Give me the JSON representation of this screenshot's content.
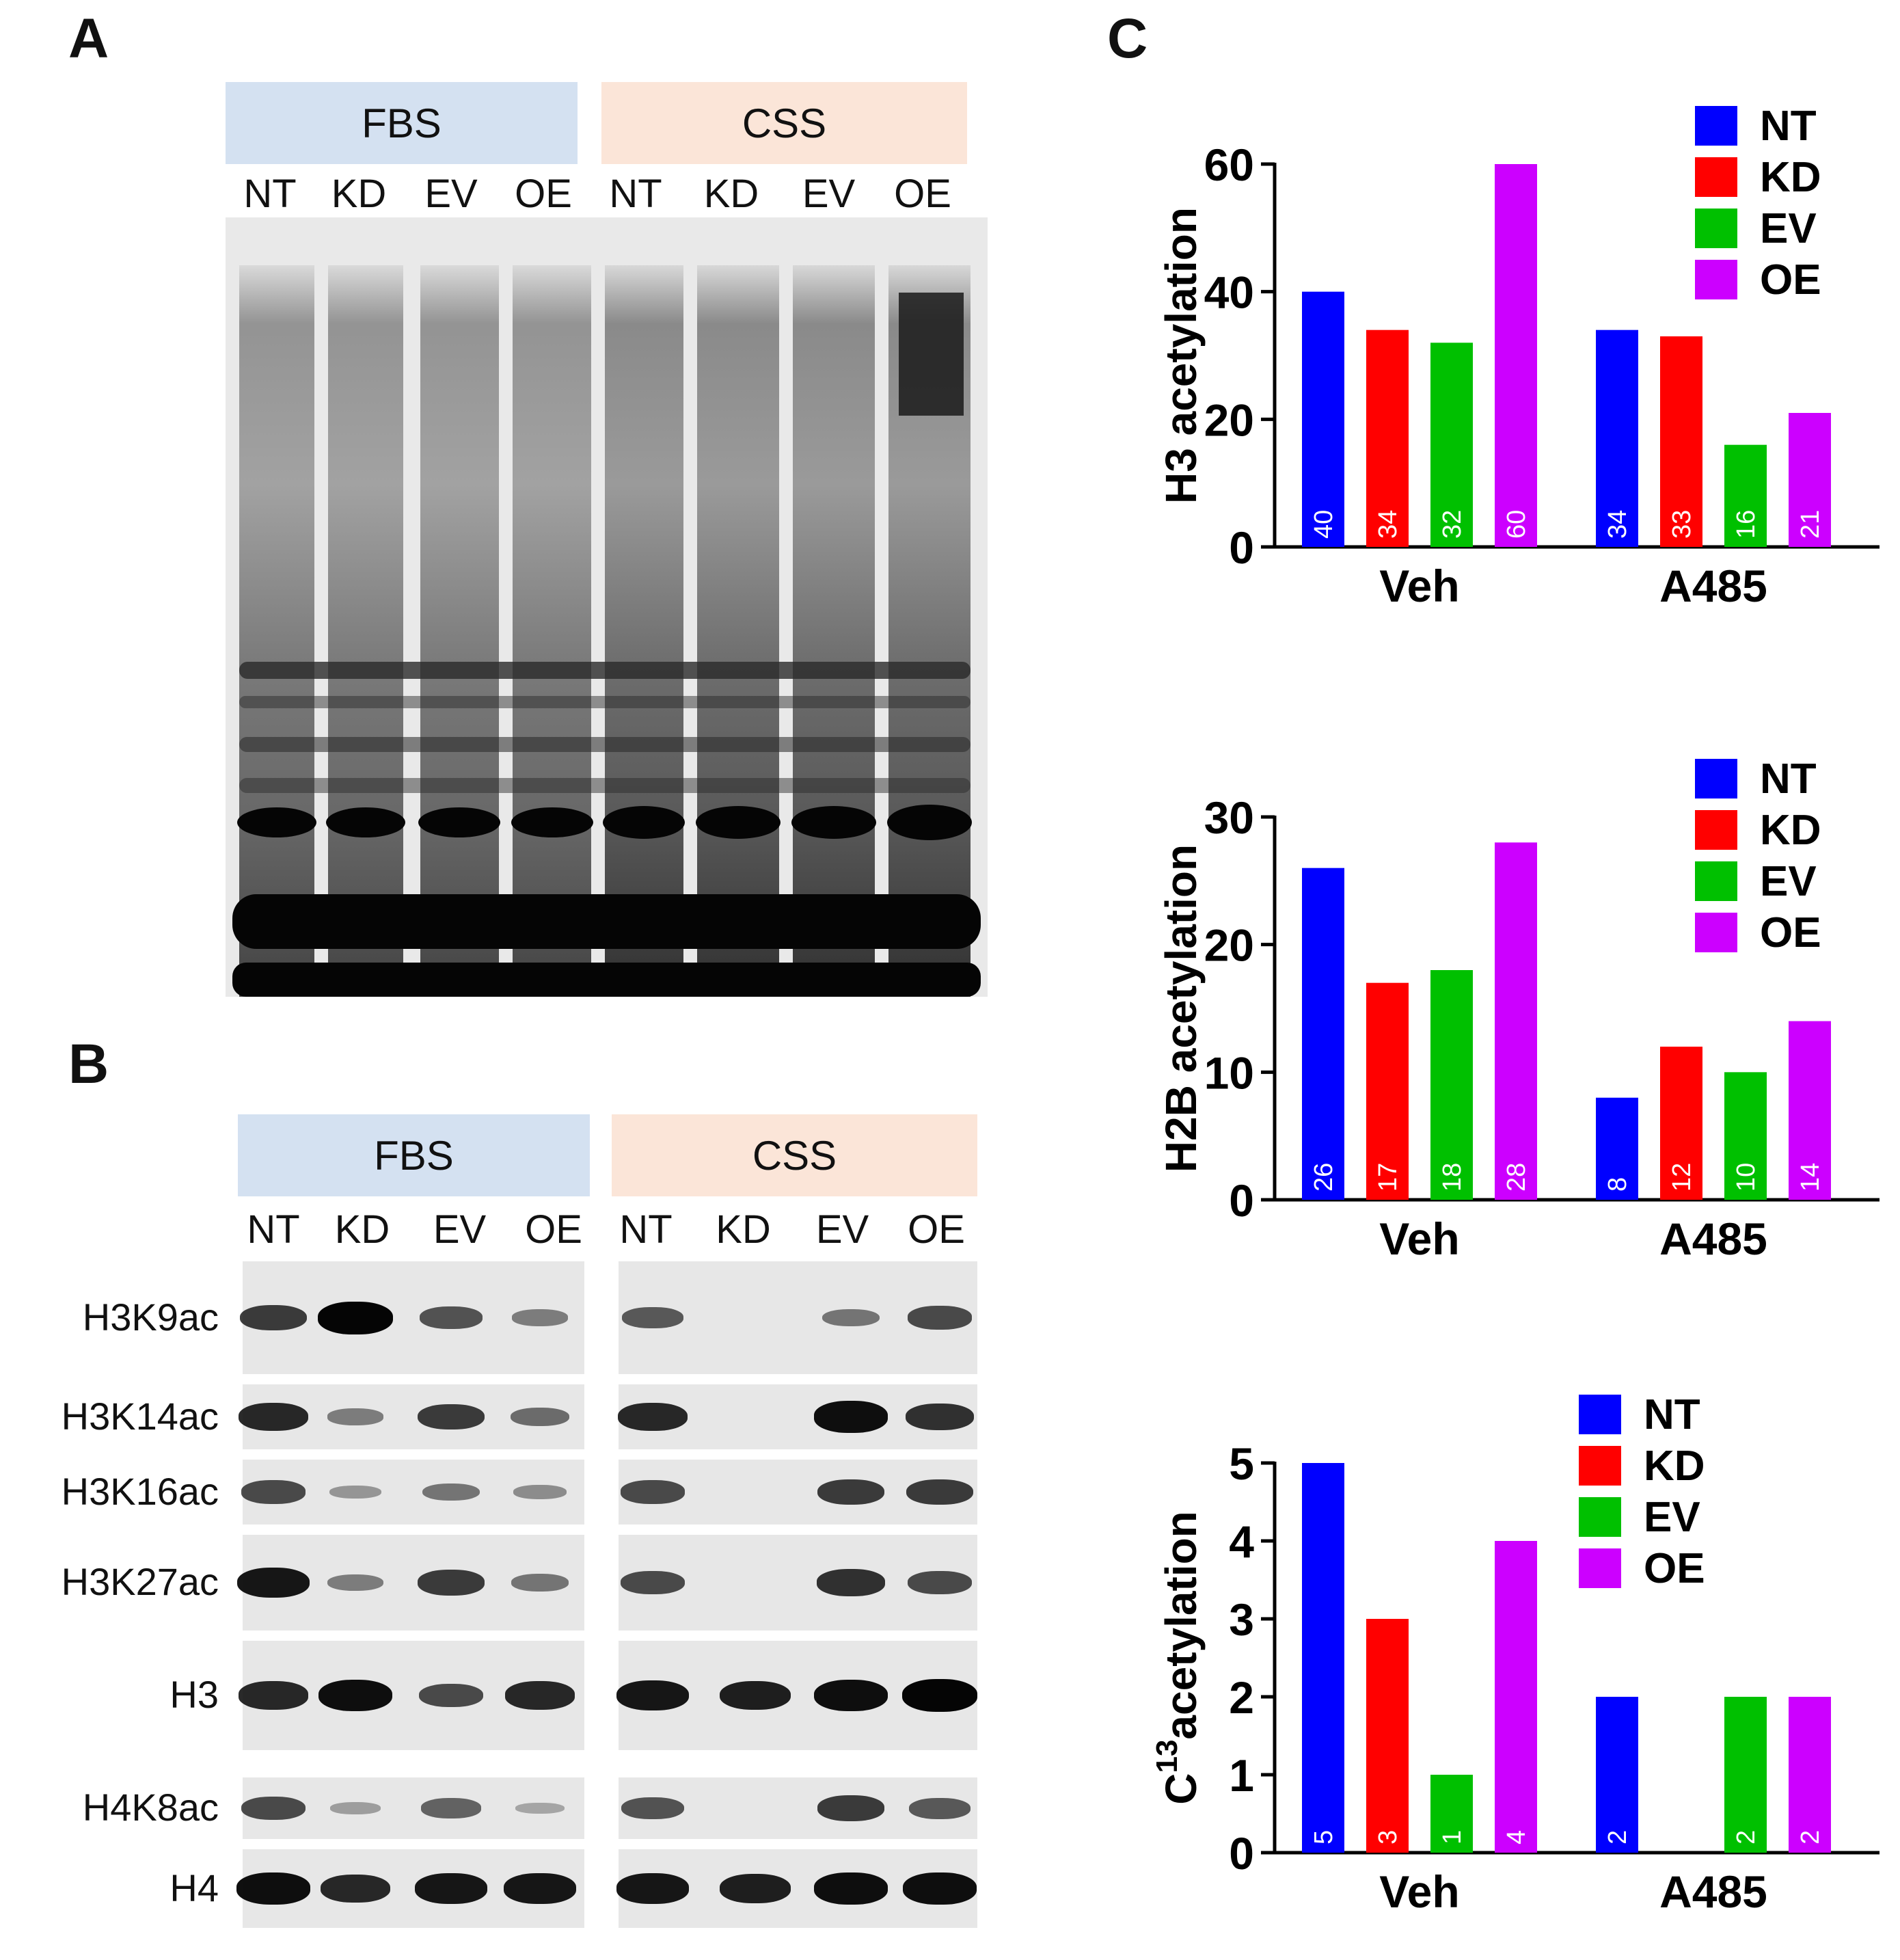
{
  "panels": {
    "a_letter": "A",
    "b_letter": "B",
    "c_letter": "C"
  },
  "panel_a": {
    "conditions": [
      "FBS",
      "CSS"
    ],
    "lanes": [
      "NT",
      "KD",
      "EV",
      "OE",
      "NT",
      "KD",
      "EV",
      "OE"
    ]
  },
  "panel_b": {
    "conditions": [
      "FBS",
      "CSS"
    ],
    "lanes": [
      "NT",
      "KD",
      "EV",
      "OE",
      "NT",
      "KD",
      "EV",
      "OE"
    ],
    "blots": [
      "H3K9ac",
      "H3K14ac",
      "H3K16ac",
      "H3K27ac",
      "H3",
      "H4K8ac",
      "H4"
    ],
    "band_intensity": [
      [
        0.7,
        1.0,
        0.55,
        0.3,
        0.5,
        0.0,
        0.35,
        0.6
      ],
      [
        0.8,
        0.3,
        0.7,
        0.4,
        0.8,
        0.0,
        0.95,
        0.75
      ],
      [
        0.6,
        0.15,
        0.35,
        0.2,
        0.6,
        0.0,
        0.7,
        0.7
      ],
      [
        0.9,
        0.3,
        0.7,
        0.35,
        0.6,
        0.0,
        0.75,
        0.6
      ],
      [
        0.8,
        0.95,
        0.6,
        0.8,
        0.9,
        0.85,
        0.95,
        1.0
      ],
      [
        0.6,
        0.1,
        0.45,
        0.05,
        0.55,
        0.0,
        0.7,
        0.5
      ],
      [
        0.95,
        0.8,
        0.9,
        0.9,
        0.9,
        0.85,
        0.95,
        0.95
      ]
    ]
  },
  "chart_data": [
    {
      "type": "bar",
      "ylabel": "H3 acetylation",
      "categories": [
        "Veh",
        "A485"
      ],
      "series": [
        {
          "name": "NT",
          "values": [
            40,
            34
          ],
          "color": "#0000ff"
        },
        {
          "name": "KD",
          "values": [
            34,
            33
          ],
          "color": "#ff0000"
        },
        {
          "name": "EV",
          "values": [
            32,
            16
          ],
          "color": "#00c000"
        },
        {
          "name": "OE",
          "values": [
            60,
            21
          ],
          "color": "#cc00ff"
        }
      ],
      "bar_labels": [
        [
          "40",
          "34"
        ],
        [
          "34",
          "33"
        ],
        [
          "32",
          "16"
        ],
        [
          "60",
          "21"
        ]
      ],
      "ylim": [
        0,
        60
      ],
      "yticks": [
        "0",
        "20",
        "40",
        "60"
      ],
      "legend": "top-right"
    },
    {
      "type": "bar",
      "ylabel": "H2B acetylation",
      "categories": [
        "Veh",
        "A485"
      ],
      "series": [
        {
          "name": "NT",
          "values": [
            26,
            8
          ],
          "color": "#0000ff"
        },
        {
          "name": "KD",
          "values": [
            17,
            12
          ],
          "color": "#ff0000"
        },
        {
          "name": "EV",
          "values": [
            18,
            10
          ],
          "color": "#00c000"
        },
        {
          "name": "OE",
          "values": [
            28,
            14
          ],
          "color": "#cc00ff"
        }
      ],
      "bar_labels": [
        [
          "26",
          "8"
        ],
        [
          "17",
          "12"
        ],
        [
          "18",
          "10"
        ],
        [
          "28",
          "14"
        ]
      ],
      "ylim": [
        0,
        30
      ],
      "yticks": [
        "0",
        "10",
        "20",
        "30"
      ],
      "legend": "top-right"
    },
    {
      "type": "bar",
      "ylabel": "C13acetylation",
      "ylabel_base": "C",
      "ylabel_sup": "13",
      "ylabel_rest": "acetylation",
      "categories": [
        "Veh",
        "A485"
      ],
      "series": [
        {
          "name": "NT",
          "values": [
            5,
            2
          ],
          "color": "#0000ff"
        },
        {
          "name": "KD",
          "values": [
            3,
            0
          ],
          "color": "#ff0000"
        },
        {
          "name": "EV",
          "values": [
            1,
            2
          ],
          "color": "#00c000"
        },
        {
          "name": "OE",
          "values": [
            4,
            2
          ],
          "color": "#cc00ff"
        }
      ],
      "bar_labels": [
        [
          "5",
          "2"
        ],
        [
          "3",
          ""
        ],
        [
          "1",
          "2"
        ],
        [
          "4",
          "2"
        ]
      ],
      "ylim": [
        0,
        5
      ],
      "yticks": [
        "0",
        "1",
        "2",
        "3",
        "4",
        "5"
      ],
      "legend": "top-right"
    }
  ]
}
